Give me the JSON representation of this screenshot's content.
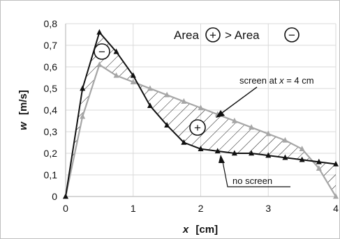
{
  "chart_data": {
    "type": "line",
    "xlabel_var": "x",
    "xlabel_unit": "[cm]",
    "ylabel_var": "w",
    "ylabel_unit": "[m/s]",
    "xlim": [
      0,
      4
    ],
    "ylim": [
      0,
      0.8
    ],
    "xticks": [
      0,
      1,
      2,
      3,
      4
    ],
    "xtick_labels": [
      "0",
      "1",
      "2",
      "3",
      "4"
    ],
    "yticks": [
      0,
      0.1,
      0.2,
      0.3,
      0.4,
      0.5,
      0.6,
      0.7,
      0.8
    ],
    "ytick_labels": [
      "0",
      "0,1",
      "0,2",
      "0,3",
      "0,4",
      "0,5",
      "0,6",
      "0,7",
      "0,8"
    ],
    "grid": true,
    "series": [
      {
        "name": "no screen",
        "color": "#111111",
        "marker": "triangle",
        "x": [
          0,
          0.25,
          0.5,
          0.75,
          1.0,
          1.25,
          1.5,
          1.75,
          2.0,
          2.25,
          2.5,
          2.75,
          3.0,
          3.25,
          3.5,
          3.75,
          4.0
        ],
        "y": [
          0,
          0.5,
          0.76,
          0.67,
          0.56,
          0.42,
          0.33,
          0.25,
          0.22,
          0.21,
          0.2,
          0.2,
          0.19,
          0.18,
          0.17,
          0.16,
          0.15
        ]
      },
      {
        "name": "screen at x = 4 cm",
        "label_prefix": "screen at ",
        "label_var": "x",
        "label_suffix": " = 4 cm",
        "color": "#a6a6a6",
        "marker": "triangle",
        "x": [
          0,
          0.25,
          0.5,
          0.75,
          1.0,
          1.25,
          1.5,
          1.75,
          2.0,
          2.25,
          2.5,
          2.75,
          3.0,
          3.25,
          3.5,
          3.75,
          4.0
        ],
        "y": [
          0,
          0.37,
          0.61,
          0.56,
          0.53,
          0.5,
          0.47,
          0.44,
          0.41,
          0.38,
          0.35,
          0.32,
          0.29,
          0.26,
          0.22,
          0.13,
          0.0
        ]
      }
    ],
    "annotations": {
      "area_word_1": "Area",
      "area_word_2": "> Area",
      "plus_symbol": "+",
      "minus_symbol": "−"
    },
    "colors": {
      "grid": "#d9d9d9",
      "frame": "#bfbfbf",
      "hatch": "#111111"
    }
  }
}
